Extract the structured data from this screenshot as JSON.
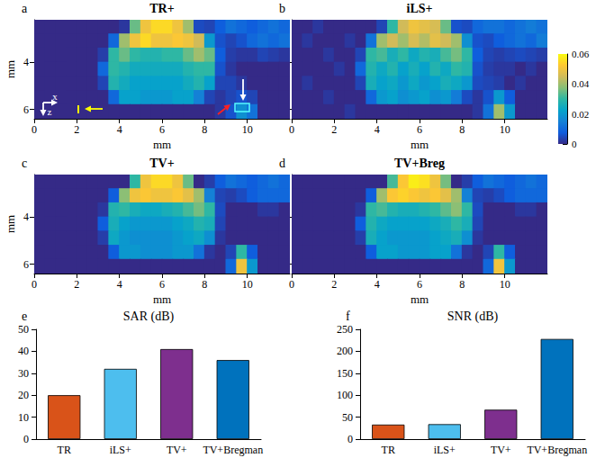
{
  "chart_data": [
    {
      "type": "heatmap",
      "title": "TR+",
      "panel_label": "a",
      "xlabel": "mm",
      "ylabel": "mm",
      "annotations": [
        "x",
        "z"
      ],
      "x": [
        0.25,
        0.75,
        1.25,
        1.75,
        2.25,
        2.75,
        3.25,
        3.75,
        4.25,
        4.75,
        5.25,
        5.75,
        6.25,
        6.75,
        7.25,
        7.75,
        8.25,
        8.75,
        9.25,
        9.75,
        10.25,
        10.75,
        11.25,
        11.75
      ],
      "y": [
        2.5,
        3.1,
        3.7,
        4.3,
        4.9,
        5.5,
        6.1
      ],
      "xlim": [
        0,
        12
      ],
      "xticks": [
        0,
        2,
        4,
        6,
        8,
        10
      ],
      "ylim": [
        2.2,
        6.4
      ],
      "yticks": [
        4,
        6
      ],
      "cells": [
        [
          0,
          0,
          0,
          0,
          0,
          0,
          0,
          0,
          0.002,
          0.035,
          0.05,
          0.055,
          0.055,
          0.05,
          0.04,
          0.005,
          0.004,
          0.008,
          0.012,
          0.01,
          0.008,
          0.01,
          0.012,
          0.01
        ],
        [
          0,
          0,
          0,
          0,
          0,
          0,
          0,
          0.01,
          0.04,
          0.05,
          0.055,
          0.05,
          0.05,
          0.052,
          0.05,
          0.045,
          0.02,
          0.006,
          0.004,
          0.006,
          0.01,
          0.012,
          0.01,
          0.012
        ],
        [
          0,
          0,
          0,
          0,
          0,
          0,
          0.003,
          0.03,
          0.035,
          0.03,
          0.028,
          0.028,
          0.03,
          0.03,
          0.035,
          0.04,
          0.035,
          0.008,
          0.003,
          0.002,
          0.002,
          0.004,
          0.003,
          0.002
        ],
        [
          0,
          0,
          0,
          0,
          0,
          0,
          0.01,
          0.03,
          0.028,
          0.025,
          0.025,
          0.025,
          0.025,
          0.025,
          0.028,
          0.03,
          0.03,
          0.006,
          0.002,
          0,
          0,
          0,
          0,
          0
        ],
        [
          0,
          0,
          0,
          0,
          0,
          0,
          0.004,
          0.028,
          0.025,
          0.022,
          0.022,
          0.022,
          0.022,
          0.022,
          0.025,
          0.028,
          0.022,
          0.004,
          0.004,
          0.002,
          0,
          0,
          0,
          0
        ],
        [
          0,
          0,
          0,
          0,
          0,
          0,
          0,
          0.01,
          0.022,
          0.022,
          0.02,
          0.02,
          0.02,
          0.022,
          0.022,
          0.015,
          0.004,
          0.002,
          0.004,
          0.006,
          0.004,
          0,
          0,
          0
        ],
        [
          0,
          0,
          0,
          0,
          0,
          0,
          0,
          0,
          0,
          0,
          0,
          0,
          0,
          0,
          0,
          0,
          0,
          0.002,
          0.006,
          0.018,
          0.012,
          0,
          0,
          0
        ]
      ]
    },
    {
      "type": "heatmap",
      "title": "iLS+",
      "panel_label": "b",
      "xlabel": "mm",
      "tick_labels": "x",
      "x": [
        0.25,
        0.75,
        1.25,
        1.75,
        2.25,
        2.75,
        3.25,
        3.75,
        4.25,
        4.75,
        5.25,
        5.75,
        6.25,
        6.75,
        7.25,
        7.75,
        8.25,
        8.75,
        9.25,
        9.75,
        10.25,
        10.75,
        11.25,
        11.75
      ],
      "y": [
        2.5,
        3.1,
        3.7,
        4.3,
        4.9,
        5.5,
        6.1
      ],
      "xlim": [
        0,
        12
      ],
      "xticks": [
        0,
        2,
        4,
        6,
        8,
        10
      ],
      "ylim": [
        2.2,
        6.4
      ],
      "yticks": [
        4,
        6
      ],
      "colorbar": {
        "range": [
          0,
          0.06
        ],
        "ticks": [
          0,
          0.02,
          0.04,
          0.06
        ]
      },
      "cells": [
        [
          0,
          0,
          0.002,
          0,
          0,
          0,
          0,
          0,
          0.004,
          0.03,
          0.045,
          0.05,
          0.048,
          0.046,
          0.035,
          0.006,
          0.005,
          0.01,
          0.012,
          0.012,
          0.01,
          0.012,
          0.014,
          0.012
        ],
        [
          0,
          0.002,
          0,
          0,
          0,
          0.002,
          0,
          0.012,
          0.04,
          0.045,
          0.04,
          0.046,
          0.042,
          0.048,
          0.045,
          0.04,
          0.018,
          0.006,
          0.005,
          0.008,
          0.01,
          0.012,
          0.01,
          0.014
        ],
        [
          0,
          0,
          0,
          0.002,
          0,
          0,
          0.004,
          0.03,
          0.032,
          0.026,
          0.03,
          0.024,
          0.028,
          0.026,
          0.032,
          0.036,
          0.03,
          0.008,
          0.004,
          0.003,
          0.004,
          0.005,
          0.004,
          0.003
        ],
        [
          0,
          0,
          0,
          0,
          0.002,
          0,
          0.01,
          0.028,
          0.024,
          0.028,
          0.022,
          0.026,
          0.022,
          0.028,
          0.024,
          0.03,
          0.028,
          0.006,
          0.003,
          0.002,
          0.002,
          0,
          0.002,
          0
        ],
        [
          0,
          0.002,
          0,
          0,
          0,
          0,
          0.004,
          0.026,
          0.022,
          0.024,
          0.02,
          0.024,
          0.02,
          0.022,
          0.026,
          0.024,
          0.02,
          0.005,
          0.004,
          0.003,
          0,
          0.002,
          0,
          0
        ],
        [
          0,
          0,
          0,
          0.002,
          0,
          0,
          0,
          0.01,
          0.02,
          0.022,
          0.018,
          0.02,
          0.022,
          0.018,
          0.02,
          0.014,
          0.005,
          0.002,
          0.006,
          0.02,
          0.008,
          0,
          0,
          0
        ],
        [
          0,
          0,
          0,
          0,
          0,
          0.002,
          0,
          0,
          0,
          0,
          0,
          0,
          0,
          0,
          0,
          0,
          0,
          0.002,
          0.012,
          0.04,
          0.02,
          0,
          0,
          0
        ]
      ]
    },
    {
      "type": "heatmap",
      "title": "TV+",
      "panel_label": "c",
      "xlabel": "mm",
      "ylabel": "mm",
      "x": [
        0.25,
        0.75,
        1.25,
        1.75,
        2.25,
        2.75,
        3.25,
        3.75,
        4.25,
        4.75,
        5.25,
        5.75,
        6.25,
        6.75,
        7.25,
        7.75,
        8.25,
        8.75,
        9.25,
        9.75,
        10.25,
        10.75,
        11.25,
        11.75
      ],
      "y": [
        2.5,
        3.1,
        3.7,
        4.3,
        4.9,
        5.5,
        6.1
      ],
      "xlim": [
        0,
        12
      ],
      "xticks": [
        0,
        2,
        4,
        6,
        8,
        10
      ],
      "ylim": [
        2.2,
        6.4
      ],
      "yticks": [
        4,
        6
      ],
      "cells": [
        [
          0,
          0,
          0,
          0,
          0,
          0,
          0,
          0,
          0,
          0.03,
          0.05,
          0.055,
          0.055,
          0.05,
          0.035,
          0,
          0.003,
          0.008,
          0.012,
          0.01,
          0.008,
          0.01,
          0.012,
          0.01
        ],
        [
          0,
          0,
          0,
          0,
          0,
          0,
          0,
          0.008,
          0.038,
          0.05,
          0.052,
          0.05,
          0.05,
          0.052,
          0.048,
          0.04,
          0.015,
          0.004,
          0.003,
          0.005,
          0.008,
          0.01,
          0.01,
          0.01
        ],
        [
          0,
          0,
          0,
          0,
          0,
          0,
          0.002,
          0.028,
          0.03,
          0.026,
          0.024,
          0.024,
          0.026,
          0.028,
          0.032,
          0.036,
          0.03,
          0.005,
          0,
          0,
          0,
          0.002,
          0.002,
          0
        ],
        [
          0,
          0,
          0,
          0,
          0,
          0,
          0.008,
          0.026,
          0.022,
          0.02,
          0.02,
          0.02,
          0.02,
          0.022,
          0.024,
          0.028,
          0.026,
          0.004,
          0,
          0,
          0,
          0,
          0,
          0
        ],
        [
          0,
          0,
          0,
          0,
          0,
          0,
          0.003,
          0.024,
          0.02,
          0.018,
          0.018,
          0.018,
          0.018,
          0.02,
          0.022,
          0.024,
          0.018,
          0.002,
          0,
          0,
          0,
          0,
          0,
          0
        ],
        [
          0,
          0,
          0,
          0,
          0,
          0,
          0,
          0.008,
          0.02,
          0.02,
          0.018,
          0.018,
          0.018,
          0.02,
          0.02,
          0.012,
          0.002,
          0,
          0.004,
          0.03,
          0.008,
          0,
          0,
          0
        ],
        [
          0,
          0,
          0,
          0,
          0,
          0,
          0,
          0,
          0,
          0,
          0,
          0,
          0,
          0,
          0,
          0,
          0,
          0,
          0.01,
          0.05,
          0.02,
          0,
          0,
          0
        ]
      ]
    },
    {
      "type": "heatmap",
      "title": "TV+Breg",
      "panel_label": "d",
      "xlabel": "mm",
      "tick_labels": "x",
      "x": [
        0.25,
        0.75,
        1.25,
        1.75,
        2.25,
        2.75,
        3.25,
        3.75,
        4.25,
        4.75,
        5.25,
        5.75,
        6.25,
        6.75,
        7.25,
        7.75,
        8.25,
        8.75,
        9.25,
        9.75,
        10.25,
        10.75,
        11.25,
        11.75
      ],
      "y": [
        2.5,
        3.1,
        3.7,
        4.3,
        4.9,
        5.5,
        6.1
      ],
      "xlim": [
        0,
        12
      ],
      "xticks": [
        0,
        2,
        4,
        6,
        8,
        10
      ],
      "ylim": [
        2.2,
        6.4
      ],
      "yticks": [
        4,
        6
      ],
      "cells": [
        [
          0,
          0,
          0,
          0,
          0,
          0,
          0,
          0,
          0,
          0.032,
          0.052,
          0.058,
          0.056,
          0.05,
          0.036,
          0,
          0.003,
          0.008,
          0.012,
          0.01,
          0.008,
          0.01,
          0.012,
          0.01
        ],
        [
          0,
          0,
          0,
          0,
          0,
          0,
          0,
          0.008,
          0.04,
          0.052,
          0.054,
          0.052,
          0.05,
          0.052,
          0.048,
          0.04,
          0.015,
          0.004,
          0.003,
          0.005,
          0.008,
          0.01,
          0.01,
          0.01
        ],
        [
          0,
          0,
          0,
          0,
          0,
          0,
          0.002,
          0.03,
          0.032,
          0.028,
          0.026,
          0.026,
          0.028,
          0.03,
          0.034,
          0.038,
          0.03,
          0.005,
          0,
          0,
          0,
          0.002,
          0.002,
          0
        ],
        [
          0,
          0,
          0,
          0,
          0,
          0,
          0.008,
          0.028,
          0.024,
          0.022,
          0.022,
          0.022,
          0.022,
          0.024,
          0.026,
          0.03,
          0.026,
          0.004,
          0,
          0,
          0,
          0,
          0,
          0
        ],
        [
          0,
          0,
          0,
          0,
          0,
          0,
          0.003,
          0.026,
          0.022,
          0.02,
          0.02,
          0.02,
          0.02,
          0.022,
          0.024,
          0.026,
          0.018,
          0.002,
          0,
          0,
          0,
          0,
          0,
          0
        ],
        [
          0,
          0,
          0,
          0,
          0,
          0,
          0,
          0.008,
          0.022,
          0.022,
          0.02,
          0.02,
          0.02,
          0.022,
          0.022,
          0.012,
          0.002,
          0,
          0.004,
          0.03,
          0.008,
          0,
          0,
          0
        ],
        [
          0,
          0,
          0,
          0,
          0,
          0,
          0,
          0,
          0,
          0,
          0,
          0,
          0,
          0,
          0,
          0,
          0,
          0,
          0.01,
          0.05,
          0.02,
          0,
          0,
          0
        ]
      ]
    },
    {
      "type": "bar",
      "title": "SAR (dB)",
      "panel_label": "e",
      "categories": [
        "TR",
        "iLS+",
        "TV+",
        "TV+Bregman"
      ],
      "values": [
        20,
        32,
        41,
        36
      ],
      "colors": [
        "#d95319",
        "#4dbeee",
        "#7e2f8e",
        "#0072bd"
      ],
      "ylim": [
        0,
        50
      ],
      "yticks": [
        0,
        10,
        20,
        30,
        40,
        50
      ],
      "grid": false
    },
    {
      "type": "bar",
      "title": "SNR (dB)",
      "panel_label": "f",
      "categories": [
        "TR",
        "iLS+",
        "TV+",
        "TV+Bregman"
      ],
      "values": [
        33,
        34,
        67,
        228
      ],
      "colors": [
        "#d95319",
        "#4dbeee",
        "#7e2f8e",
        "#0072bd"
      ],
      "ylim": [
        0,
        250
      ],
      "yticks": [
        0,
        50,
        100,
        150,
        200,
        250
      ],
      "grid": false
    }
  ]
}
